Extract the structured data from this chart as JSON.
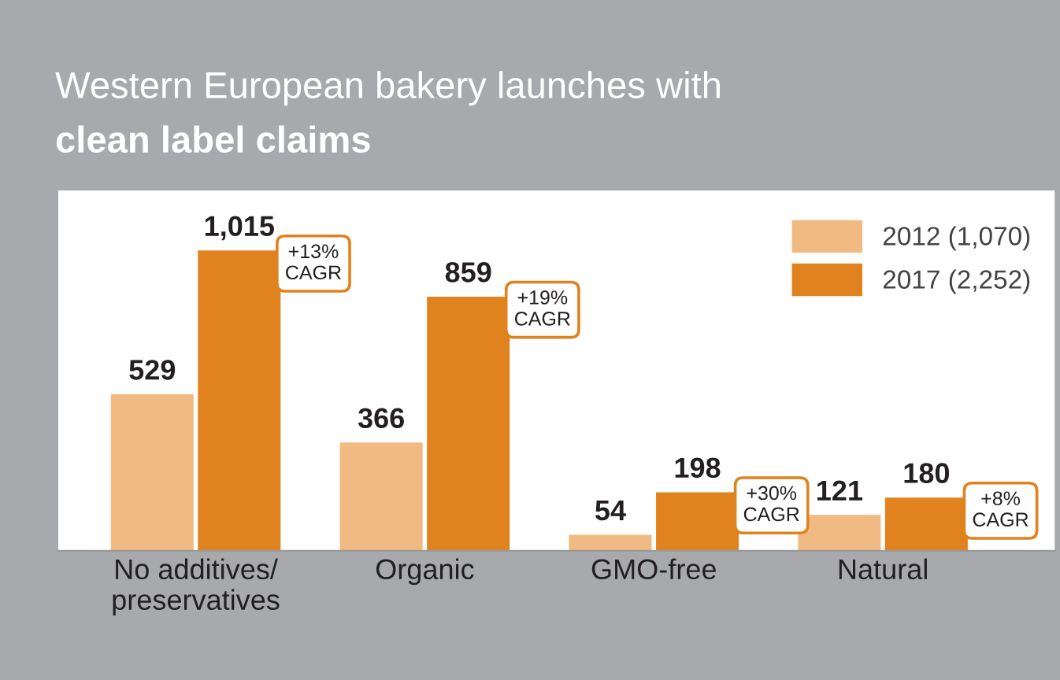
{
  "chart_data": {
    "type": "bar",
    "title": "Western European bakery launches with\nclean label claims",
    "categories": [
      "No additives/\npreservatives",
      "Organic",
      "GMO-free",
      "Natural"
    ],
    "series": [
      {
        "name": "2012 (1,070)",
        "color": "#f0ba82",
        "values": [
          529,
          366,
          54,
          121
        ],
        "value_labels": [
          "529",
          "366",
          "54",
          "121"
        ]
      },
      {
        "name": "2017 (2,252)",
        "color": "#e0831f",
        "values": [
          1015,
          859,
          198,
          180
        ],
        "value_labels": [
          "1,015",
          "859",
          "198",
          "180"
        ]
      }
    ],
    "legend": "top right",
    "grid": false,
    "annotations": [
      "+13%\nCAGR",
      "+19%\nCAGR",
      "+30%\nCAGR",
      "+8%\nCAGR"
    ]
  }
}
